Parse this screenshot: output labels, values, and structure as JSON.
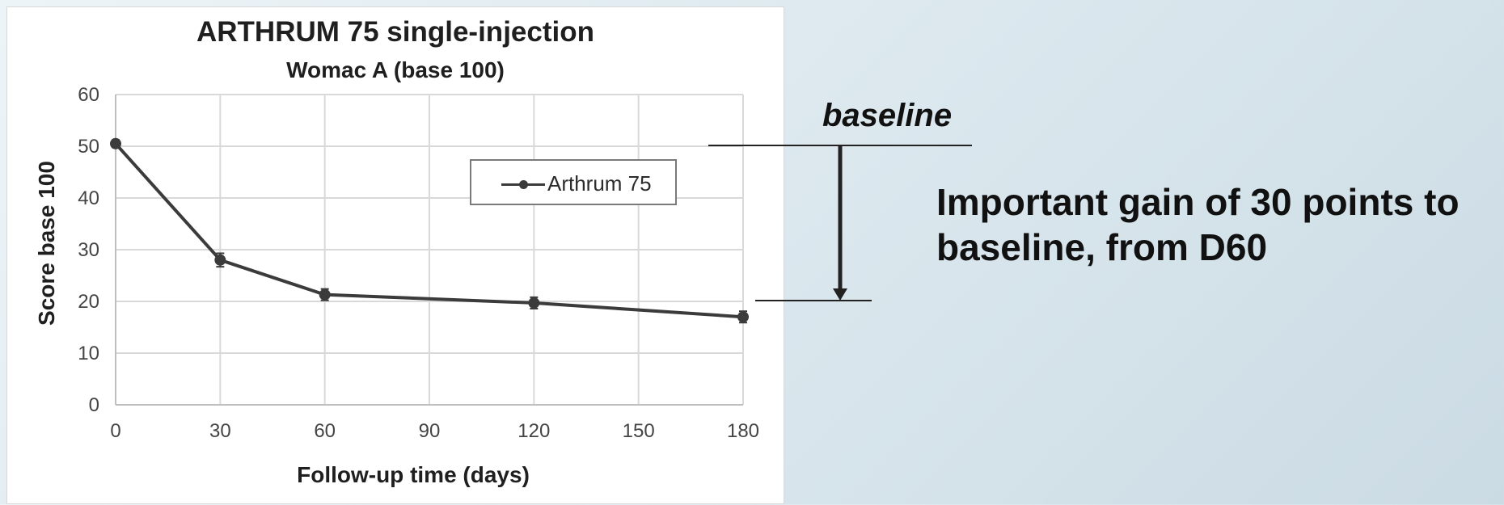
{
  "chart_data": {
    "type": "line",
    "title": "ARTHRUM 75 single-injection",
    "subtitle": "Womac A (base 100)",
    "xlabel": "Follow-up time (days)",
    "ylabel": "Score base 100",
    "xlim": [
      0,
      180
    ],
    "ylim": [
      0,
      60
    ],
    "x_ticks": [
      0,
      30,
      60,
      90,
      120,
      150,
      180
    ],
    "y_ticks": [
      0,
      10,
      20,
      30,
      40,
      50,
      60
    ],
    "grid": true,
    "legend": "top-right",
    "series": [
      {
        "name": "Arthrum 75",
        "x": [
          0,
          30,
          60,
          120,
          180
        ],
        "y": [
          50.5,
          28.0,
          21.3,
          19.7,
          17.0
        ],
        "error": [
          0.7,
          1.3,
          1.1,
          1.1,
          1.1
        ],
        "color": "#3b3b3b"
      }
    ]
  },
  "annotations": {
    "baseline_label": "baseline",
    "gain_text": "Important gain of 30 points to baseline, from D60"
  },
  "colors": {
    "line": "#3b3b3b",
    "grid": "#d9d9d9",
    "axis": "#bfbfbf",
    "annotation": "#222222"
  }
}
